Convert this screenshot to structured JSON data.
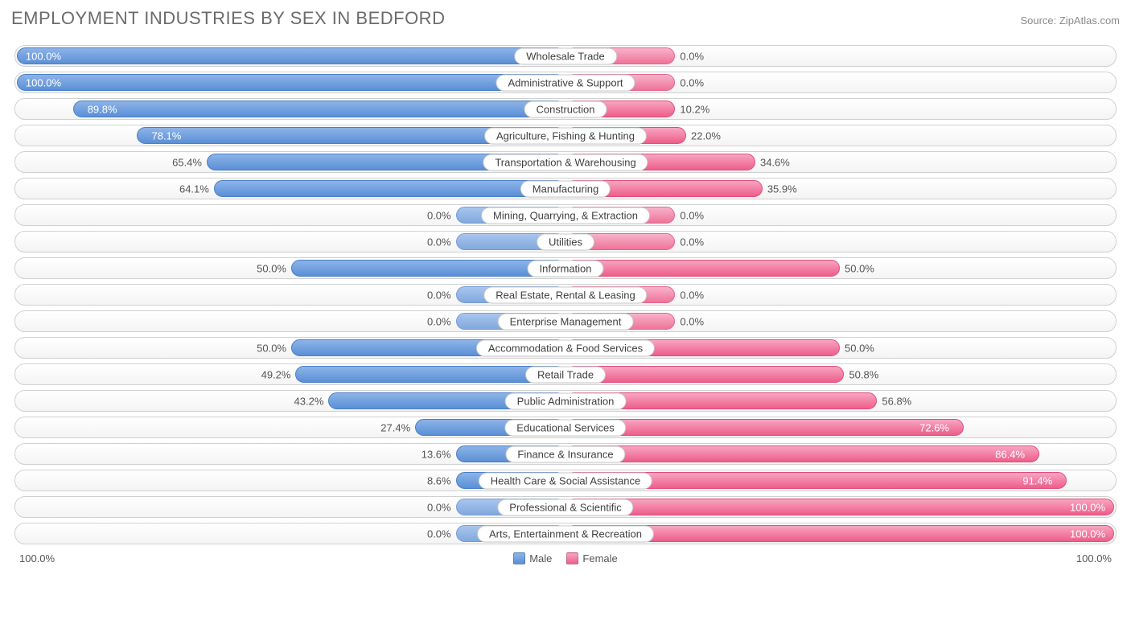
{
  "title": "EMPLOYMENT INDUSTRIES BY SEX IN BEDFORD",
  "source": "Source: ZipAtlas.com",
  "axis_left": "100.0%",
  "axis_right": "100.0%",
  "legend": {
    "male": "Male",
    "female": "Female"
  },
  "colors": {
    "male_top": "#8db4e8",
    "male_bot": "#5a8fd6",
    "male_border": "#4a7fc6",
    "female_top": "#f8a5c2",
    "female_bot": "#ed5e8a",
    "female_border": "#e04e7a",
    "row_border": "#d0d0d0",
    "label_border": "#c8c8c8",
    "text_dark": "#555555",
    "text_light": "#ffffff",
    "title_color": "#6b6b6b",
    "source_color": "#8a8a8a"
  },
  "min_bar_pct": 20,
  "rows": [
    {
      "label": "Wholesale Trade",
      "male": 100.0,
      "female": 0.0
    },
    {
      "label": "Administrative & Support",
      "male": 100.0,
      "female": 0.0
    },
    {
      "label": "Construction",
      "male": 89.8,
      "female": 10.2
    },
    {
      "label": "Agriculture, Fishing & Hunting",
      "male": 78.1,
      "female": 22.0
    },
    {
      "label": "Transportation & Warehousing",
      "male": 65.4,
      "female": 34.6
    },
    {
      "label": "Manufacturing",
      "male": 64.1,
      "female": 35.9
    },
    {
      "label": "Mining, Quarrying, & Extraction",
      "male": 0.0,
      "female": 0.0
    },
    {
      "label": "Utilities",
      "male": 0.0,
      "female": 0.0
    },
    {
      "label": "Information",
      "male": 50.0,
      "female": 50.0
    },
    {
      "label": "Real Estate, Rental & Leasing",
      "male": 0.0,
      "female": 0.0
    },
    {
      "label": "Enterprise Management",
      "male": 0.0,
      "female": 0.0
    },
    {
      "label": "Accommodation & Food Services",
      "male": 50.0,
      "female": 50.0
    },
    {
      "label": "Retail Trade",
      "male": 49.2,
      "female": 50.8
    },
    {
      "label": "Public Administration",
      "male": 43.2,
      "female": 56.8
    },
    {
      "label": "Educational Services",
      "male": 27.4,
      "female": 72.6
    },
    {
      "label": "Finance & Insurance",
      "male": 13.6,
      "female": 86.4
    },
    {
      "label": "Health Care & Social Assistance",
      "male": 8.6,
      "female": 91.4
    },
    {
      "label": "Professional & Scientific",
      "male": 0.0,
      "female": 100.0
    },
    {
      "label": "Arts, Entertainment & Recreation",
      "male": 0.0,
      "female": 100.0
    }
  ]
}
